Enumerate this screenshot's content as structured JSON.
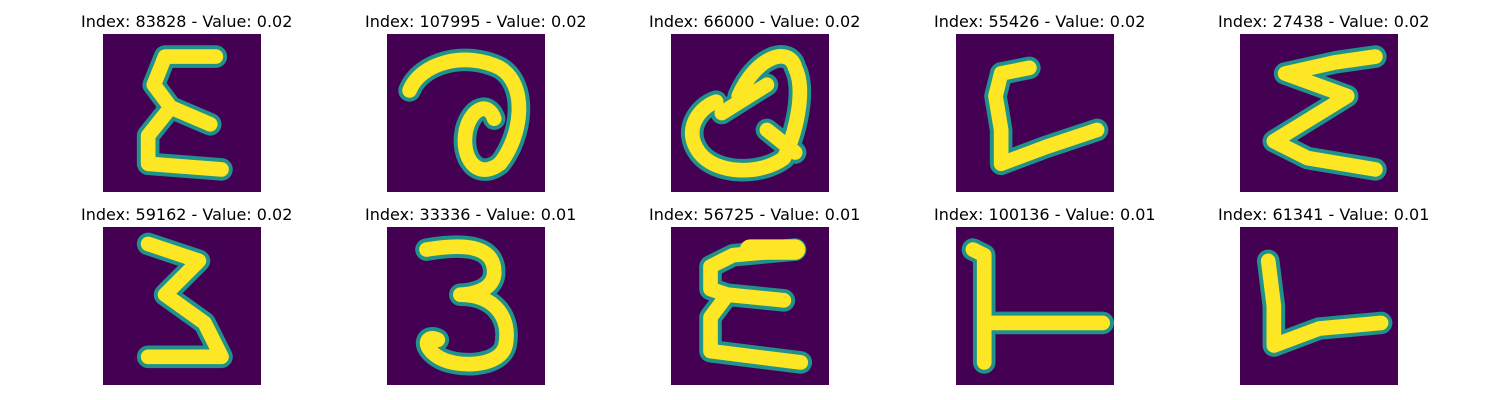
{
  "figure": {
    "panels": [
      {
        "title": "Index: 83828 - Value: 0.02",
        "glyph": "E-shape"
      },
      {
        "title": "Index: 107995 - Value: 0.02",
        "glyph": "a-loop"
      },
      {
        "title": "Index: 66000 - Value: 0.02",
        "glyph": "Q-shape"
      },
      {
        "title": "Index: 55426 - Value: 0.02",
        "glyph": "L-curve"
      },
      {
        "title": "Index: 27438 - Value: 0.02",
        "glyph": "Sigma-shape"
      },
      {
        "title": "Index: 59162 - Value: 0.02",
        "glyph": "3-shape"
      },
      {
        "title": "Index: 33336 - Value: 0.01",
        "glyph": "3-round"
      },
      {
        "title": "Index: 56725 - Value: 0.01",
        "glyph": "E-shape-2"
      },
      {
        "title": "Index: 100136 - Value: 0.01",
        "glyph": "L-T-shape"
      },
      {
        "title": "Index: 61341 - Value: 0.01",
        "glyph": "L-shape"
      }
    ],
    "colors": {
      "background": "#440154",
      "stroke": "#fde725",
      "stroke_edge": "#21918c"
    }
  }
}
